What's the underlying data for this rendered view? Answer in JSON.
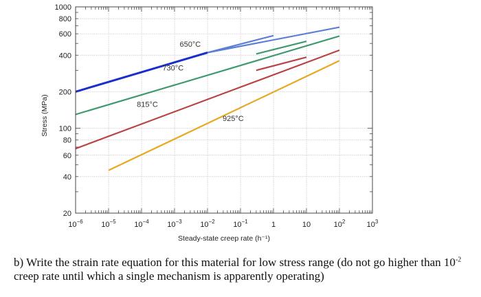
{
  "chart_data": {
    "type": "line",
    "title": "",
    "xlabel": "Steady-state creep rate (h⁻¹)",
    "ylabel": "Stress (MPa)",
    "x_scale": "log",
    "y_scale": "log",
    "xlim": [
      1e-06,
      1000
    ],
    "ylim": [
      20,
      1000
    ],
    "x_ticks": [
      {
        "value": 1e-06,
        "base": "10",
        "exp": "−6"
      },
      {
        "value": 1e-05,
        "base": "10",
        "exp": "−5"
      },
      {
        "value": 0.0001,
        "base": "10",
        "exp": "−4"
      },
      {
        "value": 0.001,
        "base": "10",
        "exp": "−3"
      },
      {
        "value": 0.01,
        "base": "10",
        "exp": "−2"
      },
      {
        "value": 0.1,
        "base": "10",
        "exp": "−1"
      },
      {
        "value": 1,
        "base": "1",
        "exp": ""
      },
      {
        "value": 10,
        "base": "10",
        "exp": ""
      },
      {
        "value": 100,
        "base": "10",
        "exp": "2"
      },
      {
        "value": 1000,
        "base": "10",
        "exp": "3"
      }
    ],
    "y_ticks": [
      {
        "value": 1000,
        "label": "1000"
      },
      {
        "value": 800,
        "label": "800"
      },
      {
        "value": 600,
        "label": "600"
      },
      {
        "value": 400,
        "label": "400"
      },
      {
        "value": 200,
        "label": "200"
      },
      {
        "value": 100,
        "label": "100"
      },
      {
        "value": 80,
        "label": "80"
      },
      {
        "value": 60,
        "label": "60"
      },
      {
        "value": 40,
        "label": "40"
      },
      {
        "value": 20,
        "label": "20"
      }
    ],
    "grid": true,
    "series": [
      {
        "name": "650°C",
        "color": "#1a2ecc",
        "color2": "#5b7fd6",
        "lines": [
          {
            "x": [
              1e-06,
              0.01
            ],
            "y": [
              200,
              420
            ],
            "color_key": "color"
          },
          {
            "x": [
              0.01,
              100
            ],
            "y": [
              420,
              680
            ],
            "color_key": "color2"
          },
          {
            "x": [
              0.01,
              1
            ],
            "y": [
              420,
              580
            ],
            "color_key": "color2"
          }
        ]
      },
      {
        "name": "730°C",
        "color": "#3e9a6e",
        "lines": [
          {
            "x": [
              1e-06,
              100
            ],
            "y": [
              130,
              575
            ]
          },
          {
            "x": [
              0.3,
              10
            ],
            "y": [
              410,
              520
            ]
          }
        ]
      },
      {
        "name": "815°C",
        "color": "#b84545",
        "lines": [
          {
            "x": [
              1e-06,
              100
            ],
            "y": [
              68,
              440
            ]
          },
          {
            "x": [
              0.3,
              10
            ],
            "y": [
              300,
              385
            ]
          }
        ]
      },
      {
        "name": "925°C",
        "color": "#e8a820",
        "lines": [
          {
            "x": [
              1e-05,
              100
            ],
            "y": [
              45,
              360
            ]
          }
        ]
      }
    ]
  },
  "question_text": {
    "part1": "b) Write the strain rate equation for this material for low stress range (do not go higher than 10",
    "sup": "-2",
    "part2": " creep rate until which a single mechanism is apparently operating)"
  }
}
